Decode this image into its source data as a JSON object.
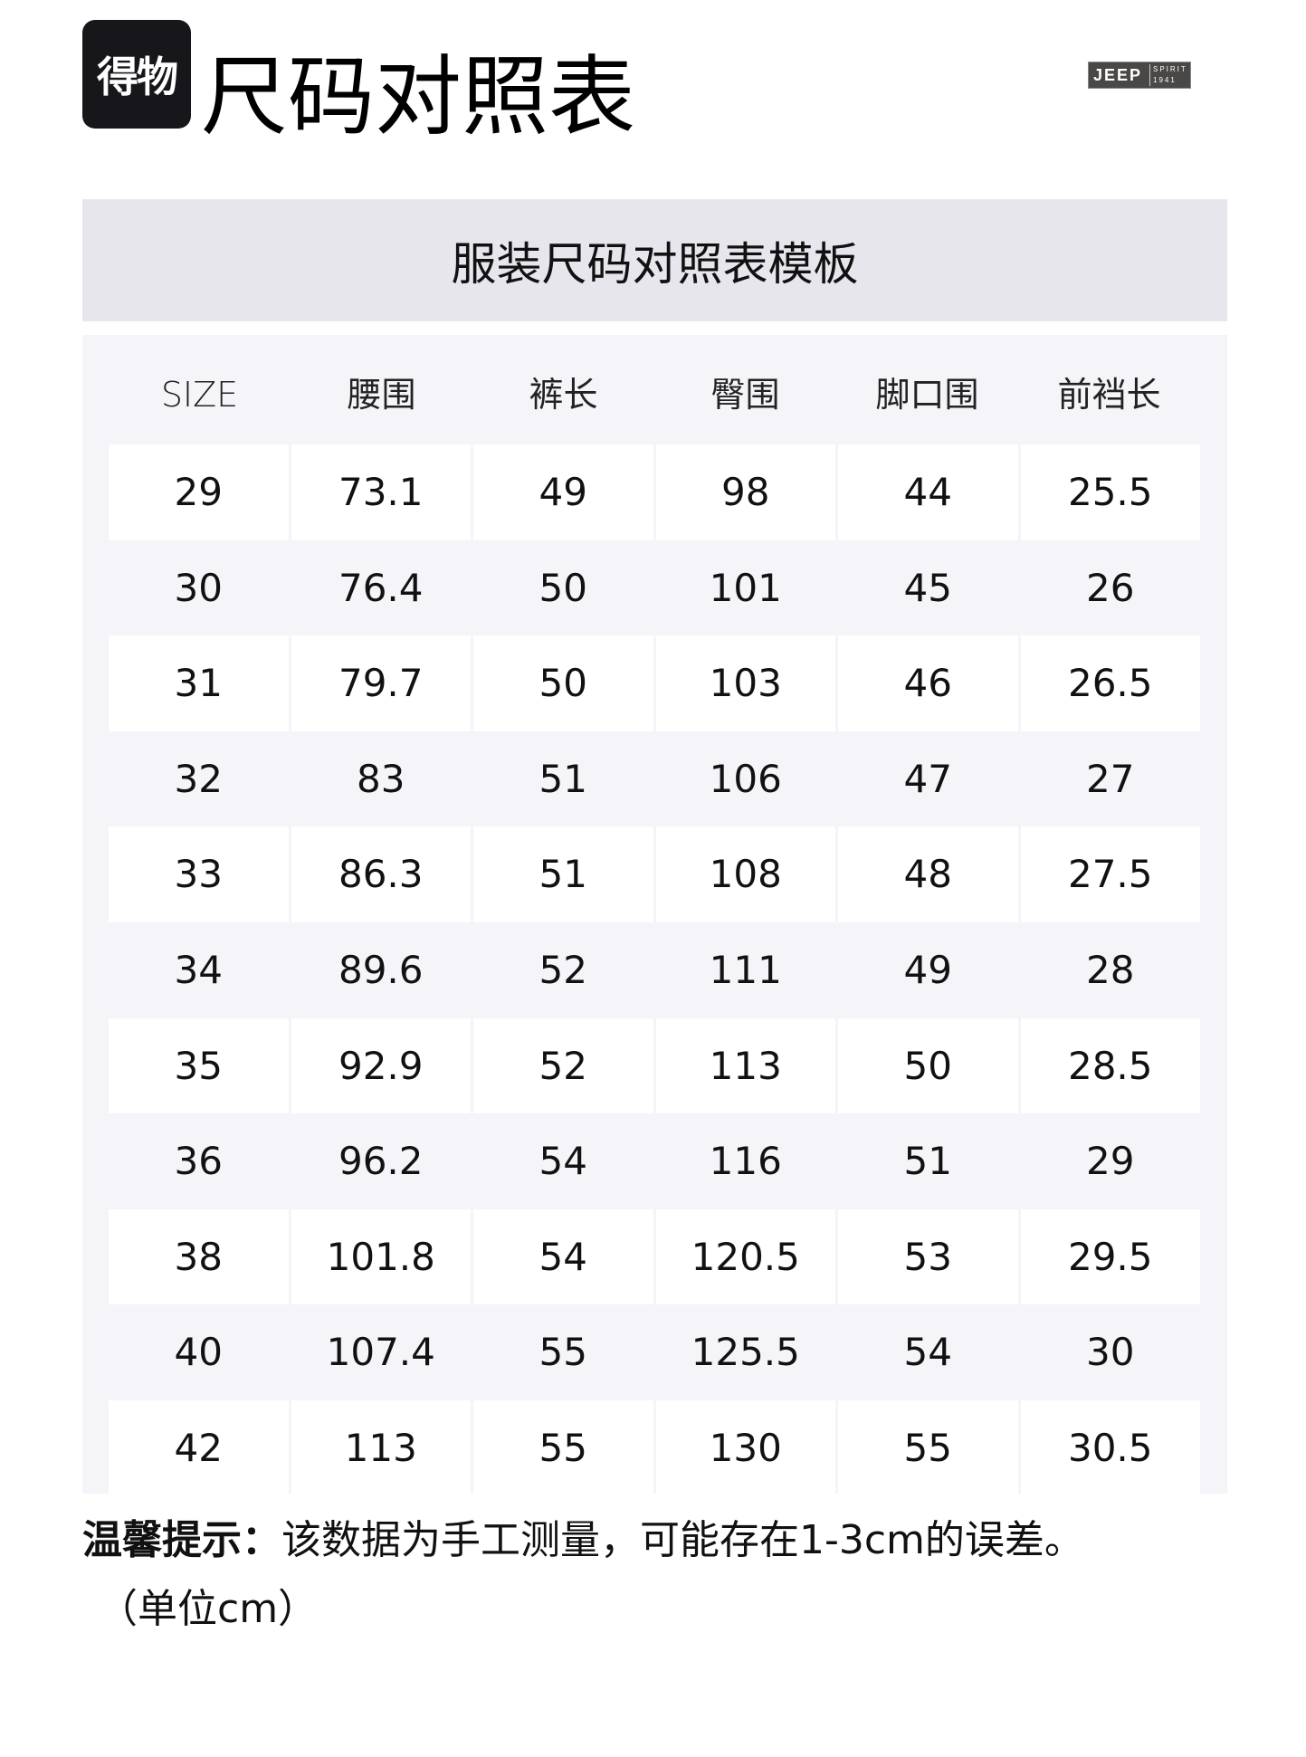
{
  "header": {
    "badge": "得物",
    "title": "尺码对照表",
    "brand_logo": {
      "name": "JEEP",
      "line1": "SPIRIT",
      "line2": "1941"
    }
  },
  "table_title": "服装尺码对照表模板",
  "columns": [
    "SIZE",
    "腰围",
    "裤长",
    "臀围",
    "脚口围",
    "前裆长"
  ],
  "rows": [
    [
      "29",
      "73.1",
      "49",
      "98",
      "44",
      "25.5"
    ],
    [
      "30",
      "76.4",
      "50",
      "101",
      "45",
      "26"
    ],
    [
      "31",
      "79.7",
      "50",
      "103",
      "46",
      "26.5"
    ],
    [
      "32",
      "83",
      "51",
      "106",
      "47",
      "27"
    ],
    [
      "33",
      "86.3",
      "51",
      "108",
      "48",
      "27.5"
    ],
    [
      "34",
      "89.6",
      "52",
      "111",
      "49",
      "28"
    ],
    [
      "35",
      "92.9",
      "52",
      "113",
      "50",
      "28.5"
    ],
    [
      "36",
      "96.2",
      "54",
      "116",
      "51",
      "29"
    ],
    [
      "38",
      "101.8",
      "54",
      "120.5",
      "53",
      "29.5"
    ],
    [
      "40",
      "107.4",
      "55",
      "125.5",
      "54",
      "30"
    ],
    [
      "42",
      "113",
      "55",
      "130",
      "55",
      "30.5"
    ]
  ],
  "note": {
    "label": "温馨提示：",
    "text": "该数据为手工测量，可能存在1-3cm的误差。",
    "unit": "（单位cm）"
  },
  "colors": {
    "badge": "#17171b",
    "band": "#e6e6ec",
    "table_bg": "#f4f4f9",
    "cell_white": "#ffffff"
  }
}
